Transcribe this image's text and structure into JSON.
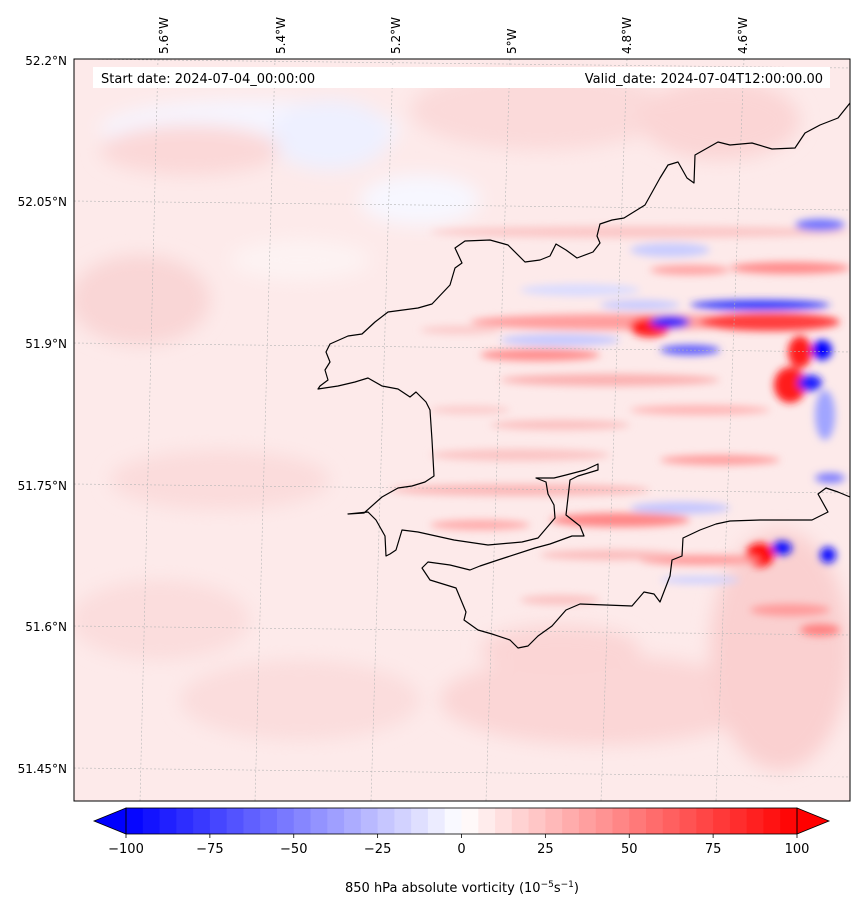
{
  "map": {
    "start_date_label": "Start date: 2024-07-04_00:00:00",
    "valid_date_label": "Valid_date: 2024-07-04T12:00:00.00",
    "lon_ticks": [
      "5.6°W",
      "5.4°W",
      "5.2°W",
      "5°W",
      "4.8°W",
      "4.6°W"
    ],
    "lat_ticks": [
      "52.2°N",
      "52.05°N",
      "51.9°N",
      "51.75°N",
      "51.6°N",
      "51.45°N"
    ]
  },
  "colorbar": {
    "label_prefix": "850 hPa absolute vorticity (10",
    "label_exp1": "−5",
    "label_mid": "s",
    "label_exp2": "−1",
    "label_suffix": ")",
    "tick_labels": [
      "−100",
      "−75",
      "−50",
      "−25",
      "0",
      "25",
      "50",
      "75",
      "100"
    ],
    "min": -100,
    "max": 100,
    "step": 5,
    "extend": "both",
    "colormap": "bwr",
    "colors": {
      "negative": "#0000ff",
      "zero": "#ffffff",
      "positive": "#ff0000"
    }
  },
  "colors": {
    "coastline": "#000000",
    "gridline": "#b0b0b0",
    "background_field": "#fde9e9"
  }
}
